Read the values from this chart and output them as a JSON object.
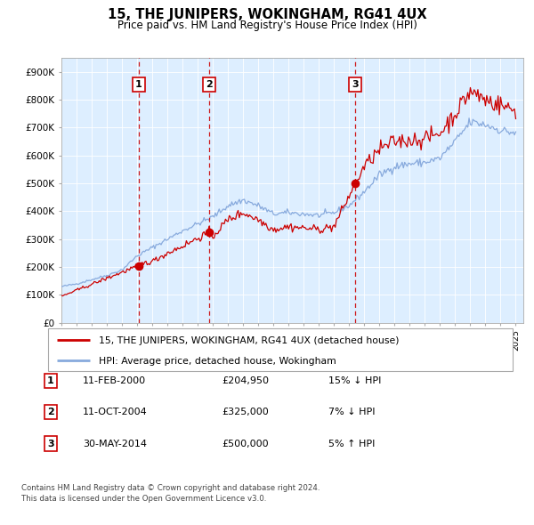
{
  "title": "15, THE JUNIPERS, WOKINGHAM, RG41 4UX",
  "subtitle": "Price paid vs. HM Land Registry's House Price Index (HPI)",
  "xlim_start": 1995.0,
  "xlim_end": 2025.5,
  "ylim_min": 0,
  "ylim_max": 950000,
  "yticks": [
    0,
    100000,
    200000,
    300000,
    400000,
    500000,
    600000,
    700000,
    800000,
    900000
  ],
  "ytick_labels": [
    "£0",
    "£100K",
    "£200K",
    "£300K",
    "£400K",
    "£500K",
    "£600K",
    "£700K",
    "£800K",
    "£900K"
  ],
  "background_color": "#ffffff",
  "chart_bg_color": "#ddeeff",
  "grid_color": "#ccddee",
  "sale_dates": [
    2000.11,
    2004.78,
    2014.41
  ],
  "sale_prices": [
    204950,
    325000,
    500000
  ],
  "sale_labels": [
    "1",
    "2",
    "3"
  ],
  "legend_line1": "15, THE JUNIPERS, WOKINGHAM, RG41 4UX (detached house)",
  "legend_line2": "HPI: Average price, detached house, Wokingham",
  "table_rows": [
    [
      "1",
      "11-FEB-2000",
      "£204,950",
      "15% ↓ HPI"
    ],
    [
      "2",
      "11-OCT-2004",
      "£325,000",
      "7% ↓ HPI"
    ],
    [
      "3",
      "30-MAY-2014",
      "£500,000",
      "5% ↑ HPI"
    ]
  ],
  "footer": "Contains HM Land Registry data © Crown copyright and database right 2024.\nThis data is licensed under the Open Government Licence v3.0.",
  "hpi_color": "#88aadd",
  "price_color": "#cc0000",
  "sale_marker_color": "#cc0000",
  "dashed_line_color": "#cc0000",
  "shade_color": "#ddeeff",
  "hpi_keypoints_year": [
    1995,
    1996,
    1997,
    1998,
    1999,
    2000,
    2001,
    2002,
    2003,
    2004,
    2005,
    2006,
    2007,
    2008,
    2009,
    2010,
    2011,
    2012,
    2013,
    2014,
    2015,
    2016,
    2017,
    2018,
    2019,
    2020,
    2021,
    2022,
    2023,
    2024,
    2025
  ],
  "hpi_keypoints_val": [
    130000,
    140000,
    155000,
    170000,
    190000,
    240000,
    270000,
    300000,
    330000,
    355000,
    380000,
    420000,
    440000,
    420000,
    390000,
    395000,
    390000,
    385000,
    395000,
    420000,
    470000,
    530000,
    560000,
    570000,
    575000,
    590000,
    650000,
    720000,
    710000,
    690000,
    680000
  ],
  "price_keypoints_year": [
    1995,
    1998,
    2000.11,
    2000.5,
    2001,
    2002,
    2003,
    2004.78,
    2005,
    2006,
    2007,
    2008,
    2009,
    2010,
    2011,
    2012,
    2013,
    2014.41,
    2015,
    2016,
    2017,
    2018,
    2019,
    2020,
    2021,
    2022,
    2023,
    2024,
    2025
  ],
  "price_keypoints_val": [
    95000,
    160000,
    204950,
    215000,
    220000,
    250000,
    275000,
    325000,
    310000,
    370000,
    395000,
    370000,
    335000,
    345000,
    340000,
    335000,
    345000,
    500000,
    560000,
    620000,
    650000,
    655000,
    660000,
    680000,
    750000,
    830000,
    800000,
    780000,
    760000
  ]
}
